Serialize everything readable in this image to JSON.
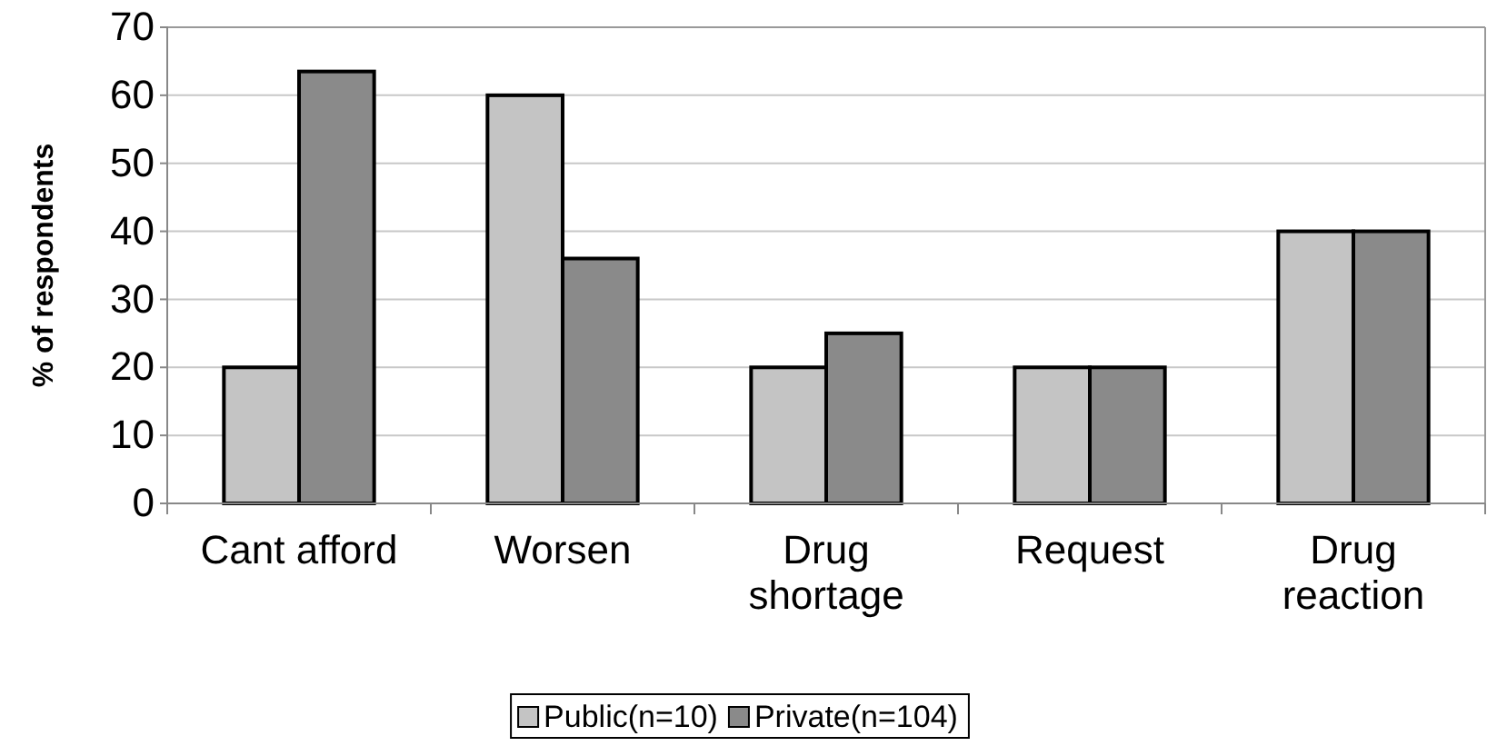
{
  "chart_data": {
    "type": "bar",
    "ylabel": "% of respondents",
    "categories": [
      "Cant afford",
      "Worsen",
      "Drug shortage",
      "Request",
      "Drug reaction"
    ],
    "series": [
      {
        "name": "Public(n=10)",
        "color": "#c4c4c4",
        "values": [
          20,
          60,
          20,
          20,
          40
        ]
      },
      {
        "name": "Private(n=104)",
        "color": "#8a8a8a",
        "values": [
          63.5,
          36,
          25,
          20,
          40
        ]
      }
    ],
    "ylim": [
      0,
      70
    ],
    "yticks": [
      0,
      10,
      20,
      30,
      40,
      50,
      60,
      70
    ],
    "grid": "y",
    "legend": "bottom"
  }
}
